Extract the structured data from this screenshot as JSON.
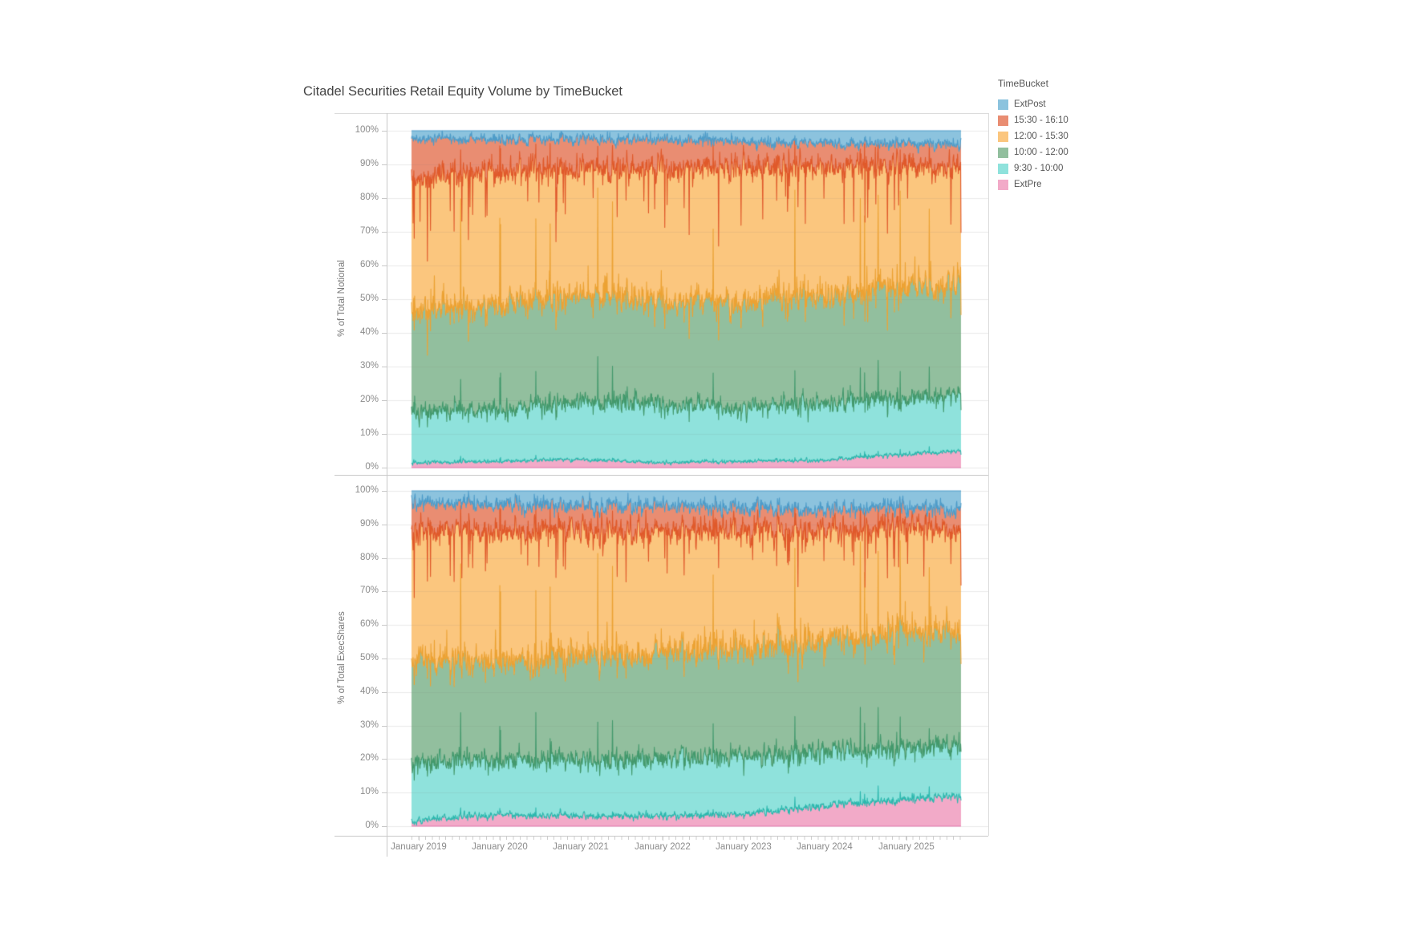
{
  "title": "Citadel Securities Retail Equity Volume by TimeBucket",
  "legend": {
    "title": "TimeBucket",
    "items": [
      {
        "label": "ExtPost",
        "fill": "#8CC3DE",
        "stroke": "#4E9CC9"
      },
      {
        "label": "15:30 - 16:10",
        "fill": "#E98D72",
        "stroke": "#E0592A"
      },
      {
        "label": "12:00 - 15:30",
        "fill": "#FBC67E",
        "stroke": "#ECA233"
      },
      {
        "label": "10:00 - 12:00",
        "fill": "#92BF9E",
        "stroke": "#43996C"
      },
      {
        "label": "9:30 - 10:00",
        "fill": "#8FE2DC",
        "stroke": "#2CB8AE"
      },
      {
        "label": "ExtPre",
        "fill": "#F2AAC8",
        "stroke": "#E379AE"
      }
    ]
  },
  "chart_data": {
    "type": "area",
    "stacking": "100%",
    "title": "Citadel Securities Retail Equity Volume by TimeBucket",
    "grid": true,
    "legend_position": "top-right",
    "x_axis": {
      "tick_labels": [
        "January 2019",
        "January 2020",
        "January 2021",
        "January 2022",
        "January 2023",
        "January 2024",
        "January 2025"
      ],
      "range": [
        "2019-01",
        "2025-09"
      ]
    },
    "y_axis": {
      "tick_labels": [
        "0%",
        "10%",
        "20%",
        "30%",
        "40%",
        "50%",
        "60%",
        "70%",
        "80%",
        "90%",
        "100%"
      ],
      "range": [
        0,
        100
      ]
    },
    "anchor_dates": [
      "2019-01",
      "2020-01",
      "2021-01",
      "2022-01",
      "2023-01",
      "2024-01",
      "2025-01",
      "2025-09"
    ],
    "series_stack_order": "bottom to top",
    "panels": [
      {
        "ylabel": "% of Total Notional",
        "series": [
          {
            "name": "ExtPre",
            "values": [
              1.5,
              1.8,
              2.5,
              1.5,
              1.8,
              2.2,
              4.0,
              5.0
            ]
          },
          {
            "name": "9:30 - 10:00",
            "values": [
              15.5,
              15.2,
              17.5,
              17.5,
              16.2,
              16.8,
              17.0,
              17.0
            ]
          },
          {
            "name": "10:00 - 12:00",
            "values": [
              30.0,
              31.0,
              32.0,
              31.0,
              31.0,
              32.0,
              33.0,
              33.0
            ]
          },
          {
            "name": "12:00 - 15:30",
            "values": [
              38.5,
              40.0,
              37.0,
              39.0,
              40.0,
              38.5,
              35.5,
              34.5
            ]
          },
          {
            "name": "15:30 - 16:10",
            "values": [
              12.0,
              9.5,
              8.5,
              8.5,
              8.0,
              7.0,
              6.5,
              6.5
            ]
          },
          {
            "name": "ExtPost",
            "values": [
              2.5,
              2.5,
              2.5,
              2.5,
              3.0,
              3.5,
              4.0,
              4.0
            ]
          }
        ]
      },
      {
        "ylabel": "% of Total ExecShares",
        "series": [
          {
            "name": "ExtPre",
            "values": [
              1.5,
              3.5,
              3.0,
              3.0,
              3.5,
              6.0,
              8.0,
              9.0
            ]
          },
          {
            "name": "9:30 - 10:00",
            "values": [
              17.5,
              16.5,
              17.0,
              17.0,
              17.5,
              16.0,
              15.0,
              15.0
            ]
          },
          {
            "name": "10:00 - 12:00",
            "values": [
              31.0,
              29.0,
              31.0,
              32.0,
              32.0,
              33.0,
              35.0,
              33.0
            ]
          },
          {
            "name": "12:00 - 15:30",
            "values": [
              38.0,
              39.0,
              37.0,
              36.0,
              35.0,
              33.0,
              31.0,
              31.0
            ]
          },
          {
            "name": "15:30 - 16:10",
            "values": [
              8.5,
              8.0,
              7.5,
              7.5,
              7.0,
              6.5,
              6.0,
              6.0
            ]
          },
          {
            "name": "ExtPost",
            "values": [
              3.5,
              4.0,
              4.5,
              4.5,
              5.0,
              5.5,
              5.0,
              6.0
            ]
          }
        ]
      }
    ],
    "daily_noise_sigma_pct": {
      "notional": [
        0.25,
        1.3,
        1.8,
        2.2,
        1.8,
        0.8
      ],
      "execshares": [
        0.5,
        1.5,
        2.0,
        2.2,
        1.6,
        1.2
      ]
    }
  }
}
